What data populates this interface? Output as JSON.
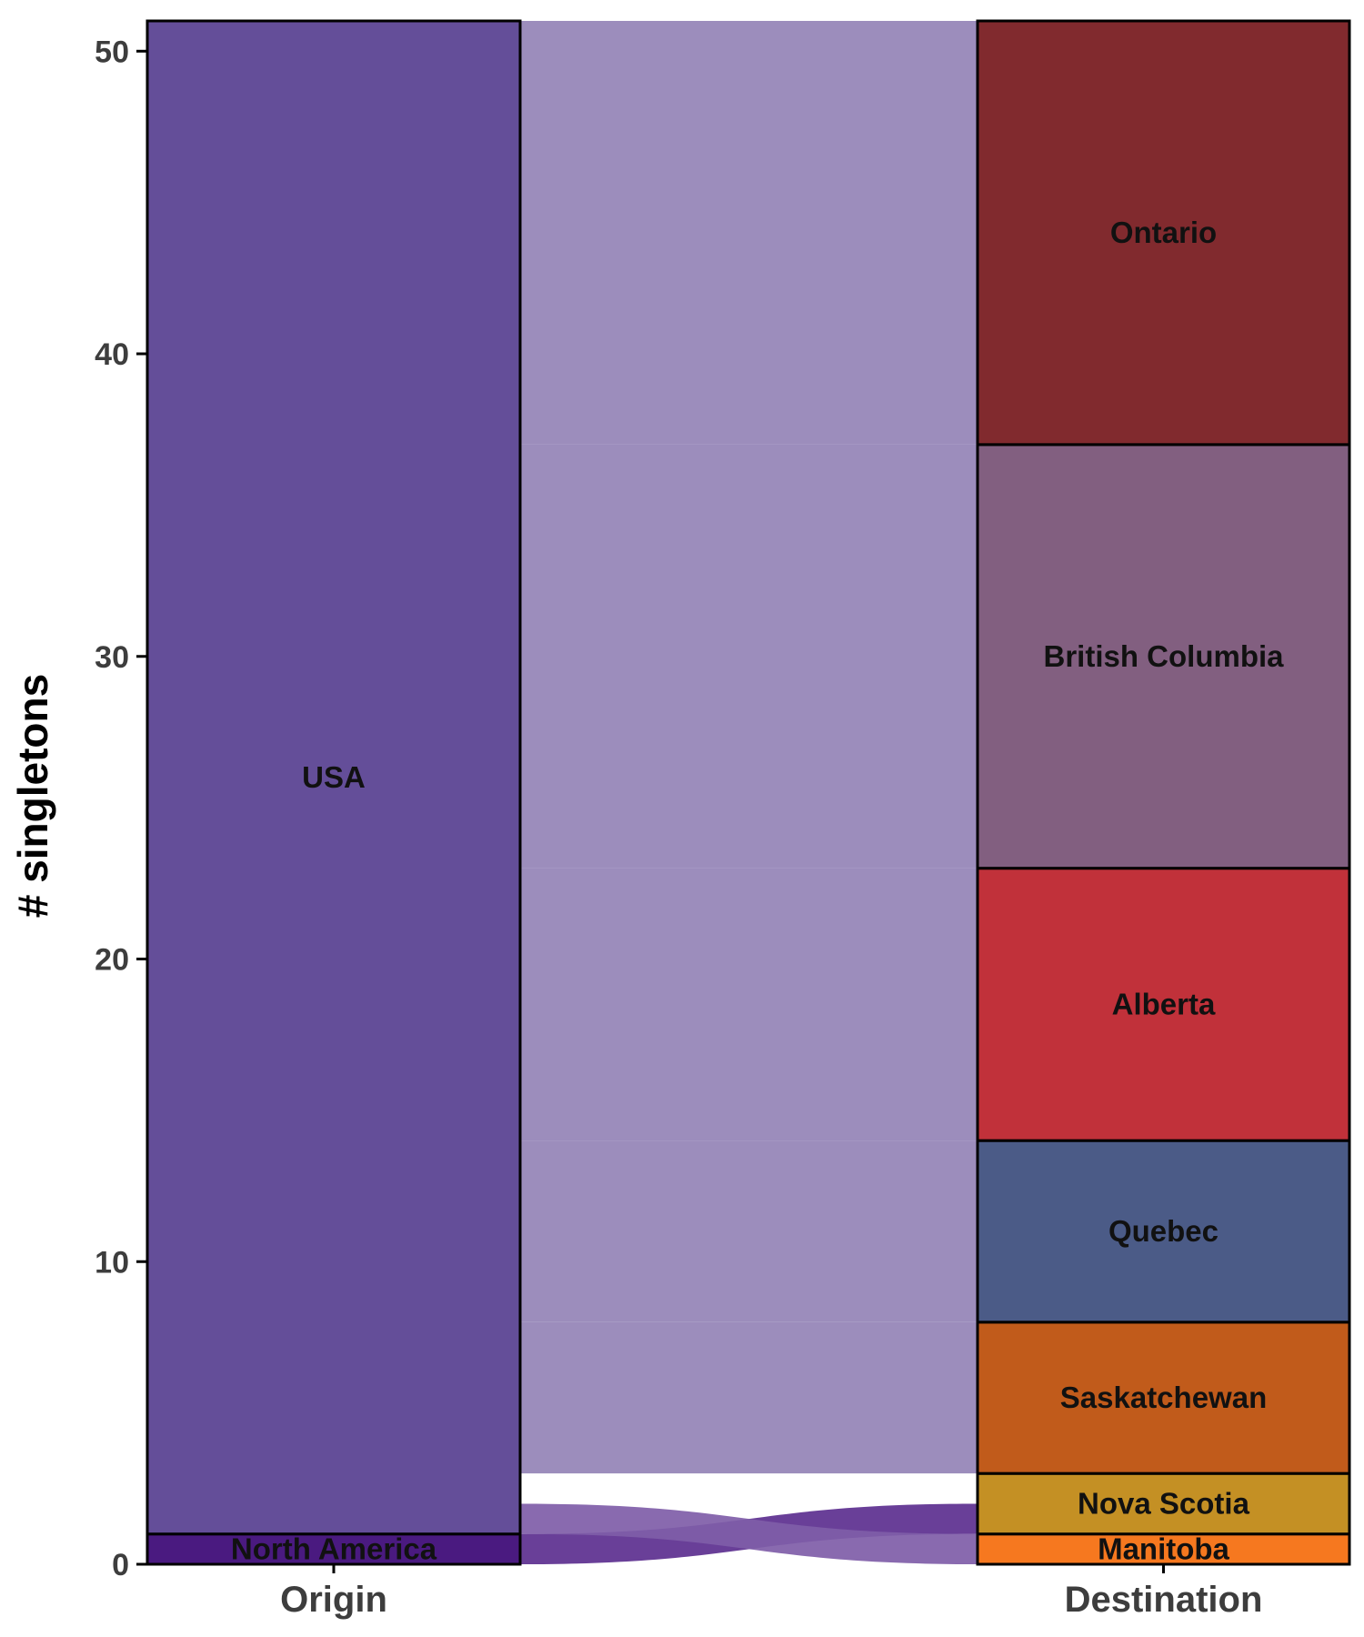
{
  "chart_data": {
    "type": "alluvial",
    "xlabel": "",
    "ylabel": "# singletons",
    "ylim": [
      0,
      51
    ],
    "yticks": [
      0,
      10,
      20,
      30,
      40,
      50
    ],
    "axes": [
      "Origin",
      "Destination"
    ],
    "origin_nodes": [
      {
        "name": "North America",
        "value": 1,
        "color": "#4a1a80"
      },
      {
        "name": "USA",
        "value": 50,
        "color": "#644e99"
      }
    ],
    "destination_nodes": [
      {
        "name": "Manitoba",
        "value": 1,
        "color": "#f6781f"
      },
      {
        "name": "Nova Scotia",
        "value": 2,
        "color": "#c49024"
      },
      {
        "name": "Saskatchewan",
        "value": 5,
        "color": "#c15b1b"
      },
      {
        "name": "Quebec",
        "value": 6,
        "color": "#4b5b87"
      },
      {
        "name": "Alberta",
        "value": 9,
        "color": "#c1313a"
      },
      {
        "name": "British Columbia",
        "value": 14,
        "color": "#825f80"
      },
      {
        "name": "Ontario",
        "value": 14,
        "color": "#812a2e"
      }
    ],
    "flows": [
      {
        "from": "North America",
        "to": "Nova Scotia",
        "value": 1,
        "color": "#5c2f8f"
      },
      {
        "from": "USA",
        "to": "Manitoba",
        "value": 1,
        "color": "#7f5da8"
      },
      {
        "from": "USA",
        "to": "Nova Scotia",
        "value": 1,
        "color": "#ffffff"
      },
      {
        "from": "USA",
        "to": "Saskatchewan",
        "value": 5,
        "color": "#9483b6"
      },
      {
        "from": "USA",
        "to": "Quebec",
        "value": 6,
        "color": "#9483b6"
      },
      {
        "from": "USA",
        "to": "Alberta",
        "value": 9,
        "color": "#9483b6"
      },
      {
        "from": "USA",
        "to": "British Columbia",
        "value": 14,
        "color": "#9483b6"
      },
      {
        "from": "USA",
        "to": "Ontario",
        "value": 14,
        "color": "#9483b6"
      }
    ]
  }
}
